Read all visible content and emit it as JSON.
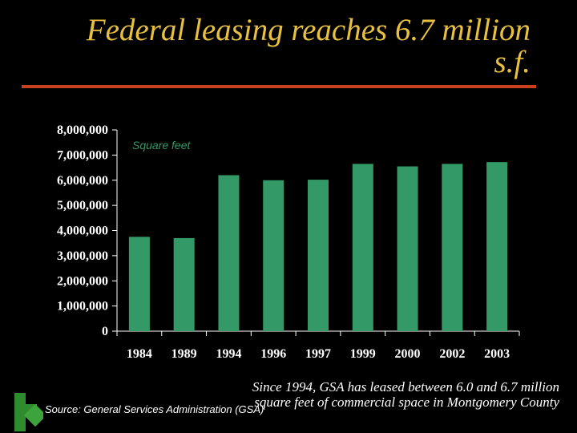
{
  "slide": {
    "title": "Federal leasing reaches 6.7 million s.f.",
    "title_color": "#E8C040",
    "rule_color": "#C8401E",
    "source": "Source:  General Services Administration (GSA)",
    "note": "Since 1994, GSA has leased between 6.0 and 6.7 million square feet of commercial space in Montgomery County",
    "note_color": "#ffffff",
    "corner_icon": "corner-arrow-icon"
  },
  "chart_data": {
    "type": "bar",
    "categories": [
      "1984",
      "1989",
      "1994",
      "1996",
      "1997",
      "1999",
      "2000",
      "2002",
      "2003"
    ],
    "values": [
      3750000,
      3700000,
      6200000,
      6000000,
      6020000,
      6650000,
      6550000,
      6650000,
      6720000
    ],
    "ylabel": "Square feet",
    "ylim": [
      0,
      8000000
    ],
    "yticks": [
      "0",
      "1,000,000",
      "2,000,000",
      "3,000,000",
      "4,000,000",
      "5,000,000",
      "6,000,000",
      "7,000,000",
      "8,000,000"
    ],
    "grid": false,
    "bar_color": "#339966",
    "axis_color": "#ffffff"
  }
}
